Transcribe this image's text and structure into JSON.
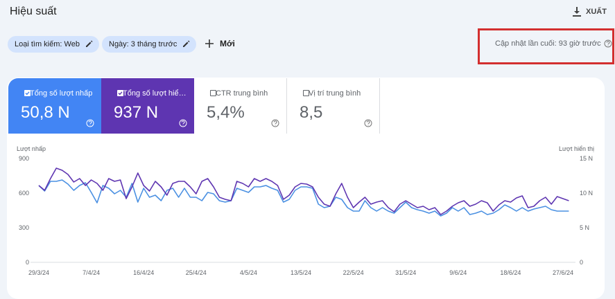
{
  "header": {
    "title": "Hiệu suất",
    "export": "XUẤT"
  },
  "filters": [
    "Loại tìm kiếm: Web",
    "Ngày: 3 tháng trước"
  ],
  "new_filter": "Mới",
  "last_updated": "Cập nhật lần cuối: 93 giờ trước",
  "metrics": [
    {
      "label": "Tổng số lượt nhấp",
      "value": "50,8 N",
      "selected": true,
      "color": "#4285f4"
    },
    {
      "label": "Tổng số lượt hiể…",
      "value": "937 N",
      "selected": true,
      "color": "#5e35b1"
    },
    {
      "label": "CTR trung bình",
      "value": "5,4%",
      "selected": false
    },
    {
      "label": "Vị trí trung bình",
      "value": "8,5",
      "selected": false
    }
  ],
  "chart_data": {
    "type": "line",
    "categories": [
      "29/3/24",
      null,
      null,
      null,
      null,
      null,
      null,
      null,
      null,
      "7/4/24",
      null,
      null,
      null,
      null,
      null,
      null,
      null,
      null,
      "16/4/24",
      null,
      null,
      null,
      null,
      null,
      null,
      null,
      null,
      "25/4/24",
      null,
      null,
      null,
      null,
      null,
      null,
      null,
      null,
      "4/5/24",
      null,
      null,
      null,
      null,
      null,
      null,
      null,
      null,
      "13/5/24",
      null,
      null,
      null,
      null,
      null,
      null,
      null,
      null,
      "22/5/24",
      null,
      null,
      null,
      null,
      null,
      null,
      null,
      null,
      "31/5/24",
      null,
      null,
      null,
      null,
      null,
      null,
      null,
      null,
      "9/6/24",
      null,
      null,
      null,
      null,
      null,
      null,
      null,
      null,
      "18/6/24",
      null,
      null,
      null,
      null,
      null,
      null,
      null,
      null,
      "27/6/24",
      null
    ],
    "ylim": [
      0,
      900
    ],
    "yticks": [
      0,
      300,
      600,
      900
    ],
    "y2lim": [
      0,
      15000
    ],
    "y2ticks": [
      0,
      {
        "value": 5000,
        "label": "5 N"
      },
      {
        "value": 10000,
        "label": "10 N"
      },
      {
        "value": 15000,
        "label": "15 N"
      }
    ],
    "grid": false,
    "series": [
      {
        "name": "Lượt nhấp",
        "color": "#4a90e2",
        "values": [
          666,
          618,
          702,
          702,
          714,
          678,
          624,
          666,
          690,
          606,
          516,
          666,
          642,
          594,
          624,
          564,
          684,
          522,
          642,
          564,
          582,
          534,
          624,
          642,
          564,
          642,
          564,
          564,
          534,
          606,
          594,
          534,
          522,
          534,
          642,
          624,
          606,
          654,
          654,
          666,
          642,
          624,
          522,
          546,
          624,
          654,
          654,
          642,
          504,
          474,
          486,
          564,
          546,
          474,
          444,
          444,
          534,
          474,
          444,
          474,
          444,
          426,
          474,
          522,
          474,
          456,
          444,
          426,
          444,
          402,
          426,
          474,
          444,
          474,
          414,
          426,
          444,
          414,
          426,
          456,
          498,
          474,
          444,
          474,
          444,
          462,
          474,
          486,
          456,
          444,
          444,
          444
        ]
      },
      {
        "name": "Lượt hiển thị",
        "color": "#5e35b1",
        "axis": "y2",
        "values": [
          11100,
          10400,
          12100,
          13600,
          13300,
          12700,
          11600,
          12100,
          11100,
          11900,
          11400,
          10400,
          12100,
          11700,
          11900,
          9200,
          10900,
          12900,
          11100,
          10300,
          11700,
          10900,
          9700,
          11400,
          11700,
          11700,
          10900,
          9900,
          11700,
          12100,
          10900,
          9400,
          9100,
          8900,
          11700,
          11400,
          10900,
          12100,
          11700,
          12100,
          11700,
          11100,
          9100,
          9700,
          10900,
          11400,
          11300,
          10900,
          9400,
          8400,
          8100,
          9900,
          11400,
          9400,
          7900,
          8700,
          9400,
          8400,
          8700,
          8900,
          7900,
          7300,
          8400,
          8900,
          8400,
          7900,
          8100,
          7600,
          7900,
          6900,
          7400,
          8100,
          8600,
          8900,
          8100,
          8400,
          8900,
          8600,
          7400,
          8300,
          8900,
          8700,
          9300,
          9600,
          7900,
          8100,
          8900,
          9400,
          8400,
          9500,
          9200,
          8900
        ]
      }
    ]
  }
}
